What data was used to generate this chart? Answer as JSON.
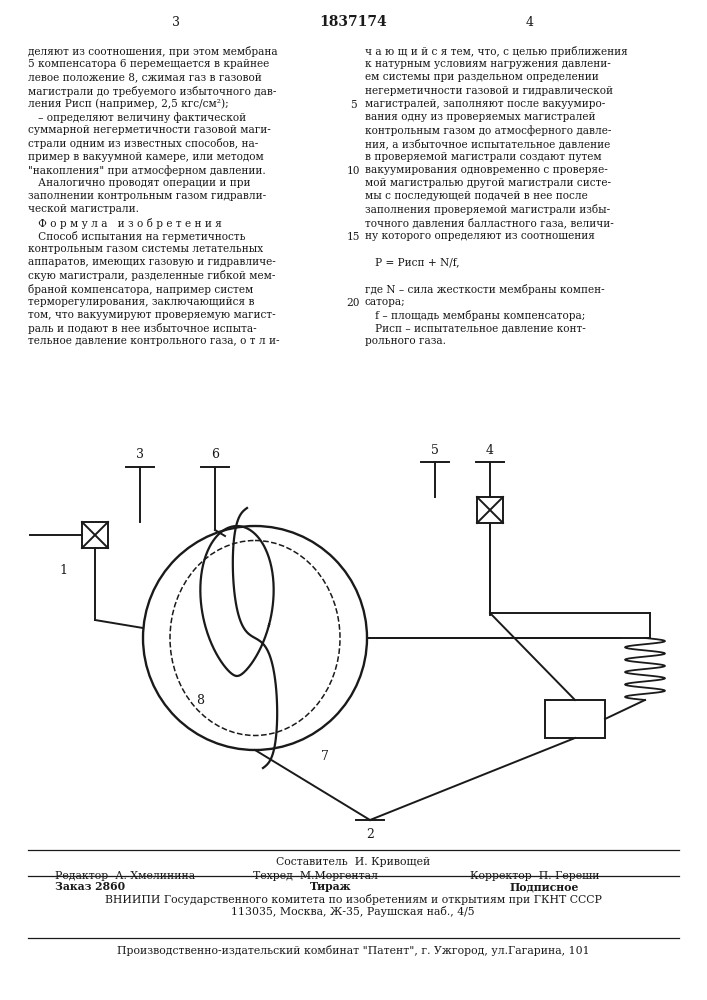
{
  "bg_color": "#ffffff",
  "text_color": "#1a1a1a",
  "page_num_left": "3",
  "page_center": "1837174",
  "page_num_right": "4",
  "col_left_text": [
    "деляют из соотношения, при этом мембрана",
    "5 компенсатора 6 перемещается в крайнее",
    "левое положение 8, сжимая газ в газовой",
    "магистрали до требуемого избыточного дав-",
    "ления Рисп (например, 2,5 кгс/см²);",
    "   – определяют величину фактической",
    "суммарной негерметичности газовой маги-",
    "страли одним из известных способов, на-",
    "пример в вакуумной камере, или методом",
    "\"накопления\" при атмосферном давлении.",
    "   Аналогично проводят операции и при",
    "заполнении контрольным газом гидравли-",
    "ческой магистрали.",
    "   Ф о р м у л а   и з о б р е т е н и я",
    "   Способ испытания на герметичность",
    "контрольным газом системы летательных",
    "аппаратов, имеющих газовую и гидравличе-",
    "скую магистрали, разделенные гибкой мем-",
    "браной компенсатора, например систем",
    "терморегулирования, заключающийся в",
    "том, что вакуумируют проверяемую магист-",
    "раль и подают в нее избыточное испыта-",
    "тельное давление контрольного газа, о т л и-"
  ],
  "col_right_text": [
    "ч а ю щ и й с я тем, что, с целью приближения",
    "к натурным условиям нагружения давлени-",
    "ем системы при раздельном определении",
    "негерметичности газовой и гидравлической",
    "магистралей, заполняют после вакуумиро-",
    "вания одну из проверяемых магистралей",
    "контрольным газом до атмосферного давле-",
    "ния, а избыточное испытательное давление",
    "в проверяемой магистрали создают путем",
    "вакуумирования одновременно с проверяе-",
    "мой магистралью другой магистрали систе-",
    "мы с последующей подачей в нее после",
    "заполнения проверяемой магистрали избы-",
    "точного давления балластного газа, величи-",
    "ну которого определяют из соотношения",
    "",
    "   P = Рисп + N/f,",
    "",
    "где N – сила жесткости мембраны компен-",
    "сатора;",
    "   f – площадь мембраны компенсатора;",
    "   Рисп – испытательное давление конт-",
    "рольного газа."
  ],
  "line_numbers": [
    [
      "5",
      4
    ],
    [
      "10",
      9
    ],
    [
      "15",
      14
    ],
    [
      "20",
      19
    ]
  ],
  "footer_sestavitel": "Составитель  И. Кривощей",
  "footer_editor": "Редактор  А. Хмелинина",
  "footer_tech": "Техред  М.Моргентал",
  "footer_corr": "Корректор  П. Гереши",
  "footer_order": "Заказ 2860",
  "footer_tirazh": "Тираж",
  "footer_podp": "Подписное",
  "footer_vniipи": "ВНИИПИ Государственного комитета по изобретениям и открытиям при ГКНТ СССР",
  "footer_addr": "113035, Москва, Ж-35, Раушская наб., 4/5",
  "footer_bottom": "Производственно-издательский комбинат \"Патент\", г. Ужгород, ул.Гагарина, 101"
}
